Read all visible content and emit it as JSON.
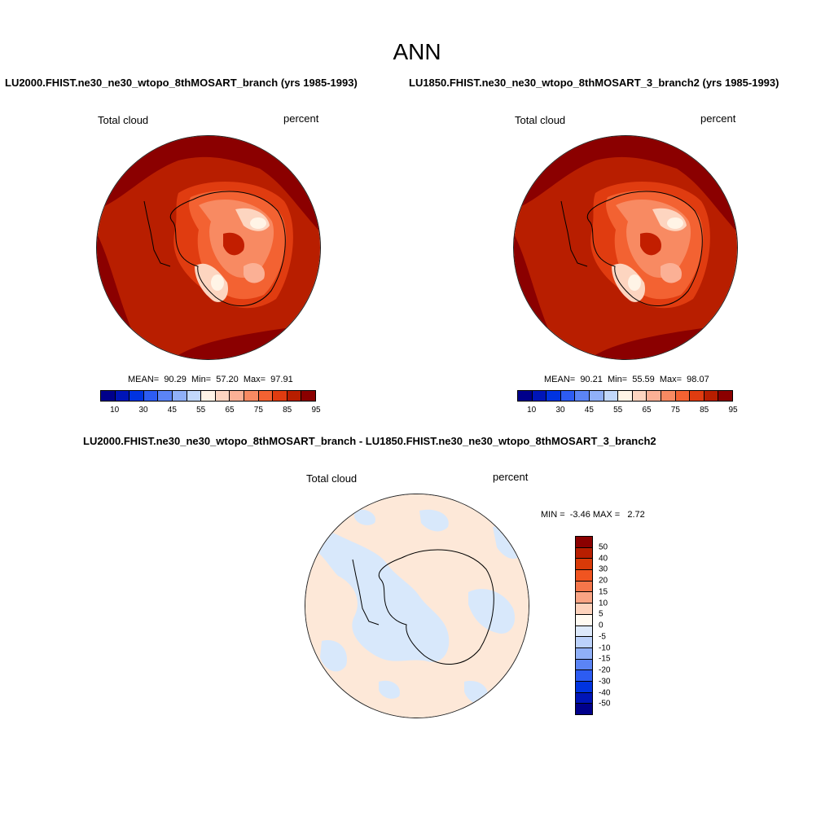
{
  "figure": {
    "title": "ANN"
  },
  "panels": [
    {
      "title": "LU2000.FHIST.ne30_ne30_wtopo_8thMOSART_branch (yrs 1985-1993)",
      "left_label": "Total cloud",
      "right_label": "percent",
      "stats": "MEAN=  90.29  Min=  57.20  Max=  97.91"
    },
    {
      "title": "LU1850.FHIST.ne30_ne30_wtopo_8thMOSART_3_branch2 (yrs 1985-1993)",
      "left_label": "Total cloud",
      "right_label": "percent",
      "stats": "MEAN=  90.21  Min=  55.59  Max=  98.07"
    },
    {
      "title": "LU2000.FHIST.ne30_ne30_wtopo_8thMOSART_branch - LU1850.FHIST.ne30_ne30_wtopo_8thMOSART_3_branch2",
      "left_label": "Total cloud",
      "right_label": "percent",
      "stats": "MIN =  -3.46 MAX =   2.72"
    }
  ],
  "colorbar_abs": {
    "colors": [
      "#00008b",
      "#0015b8",
      "#0033e0",
      "#2d5cf2",
      "#5b84f5",
      "#90b0f8",
      "#c2d8fb",
      "#fff4e6",
      "#fdd5c0",
      "#fbb095",
      "#f88a62",
      "#f36232",
      "#e03c10",
      "#b81e00",
      "#8b0000"
    ],
    "ticks": [
      "10",
      "30",
      "45",
      "55",
      "65",
      "75",
      "85",
      "95"
    ]
  },
  "colorbar_diff": {
    "colors": [
      "#8b0000",
      "#b81e00",
      "#d83a08",
      "#f05420",
      "#f5764a",
      "#f9a484",
      "#fdd2bc",
      "#fffaf2",
      "#dde9fb",
      "#bcd2fb",
      "#90b0f8",
      "#5b84f5",
      "#2d5cf2",
      "#0033e0",
      "#0015b8",
      "#00008b"
    ],
    "ticks": [
      "50",
      "40",
      "30",
      "20",
      "15",
      "10",
      "5",
      "0",
      "-5",
      "-10",
      "-15",
      "-20",
      "-30",
      "-40",
      "-50"
    ]
  }
}
